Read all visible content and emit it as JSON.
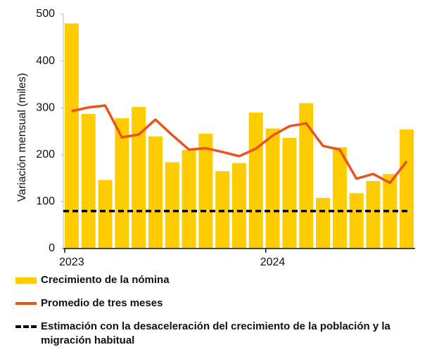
{
  "chart_data": {
    "type": "bar",
    "y_label": "Variación mensual (miles)",
    "categories": [
      "2023",
      null,
      null,
      null,
      null,
      null,
      null,
      null,
      null,
      null,
      null,
      null,
      "2024",
      null,
      null,
      null,
      null,
      null,
      null,
      null,
      null
    ],
    "ylim": [
      0,
      500
    ],
    "yticks": [
      0,
      100,
      200,
      300,
      400,
      500
    ],
    "series": [
      {
        "name": "Crecimiento de la nómina",
        "type": "bar",
        "color": "#ffcc00",
        "values": [
          480,
          287,
          146,
          278,
          302,
          239,
          184,
          210,
          245,
          165,
          182,
          290,
          256,
          236,
          310,
          108,
          216,
          118,
          144,
          159,
          254
        ]
      },
      {
        "name": "Promedio de tres meses",
        "type": "line",
        "color": "#e8541e",
        "values": [
          293,
          301,
          305,
          237,
          243,
          275,
          242,
          211,
          214,
          206,
          197,
          213,
          241,
          261,
          267,
          219,
          211,
          149,
          159,
          140,
          186
        ]
      }
    ],
    "reference_lines": [
      {
        "name": "Estimación con la desaceleración del crecimiento de la población y la migración habitual",
        "value": 80,
        "color": "#000000",
        "style": "dashed"
      }
    ]
  }
}
